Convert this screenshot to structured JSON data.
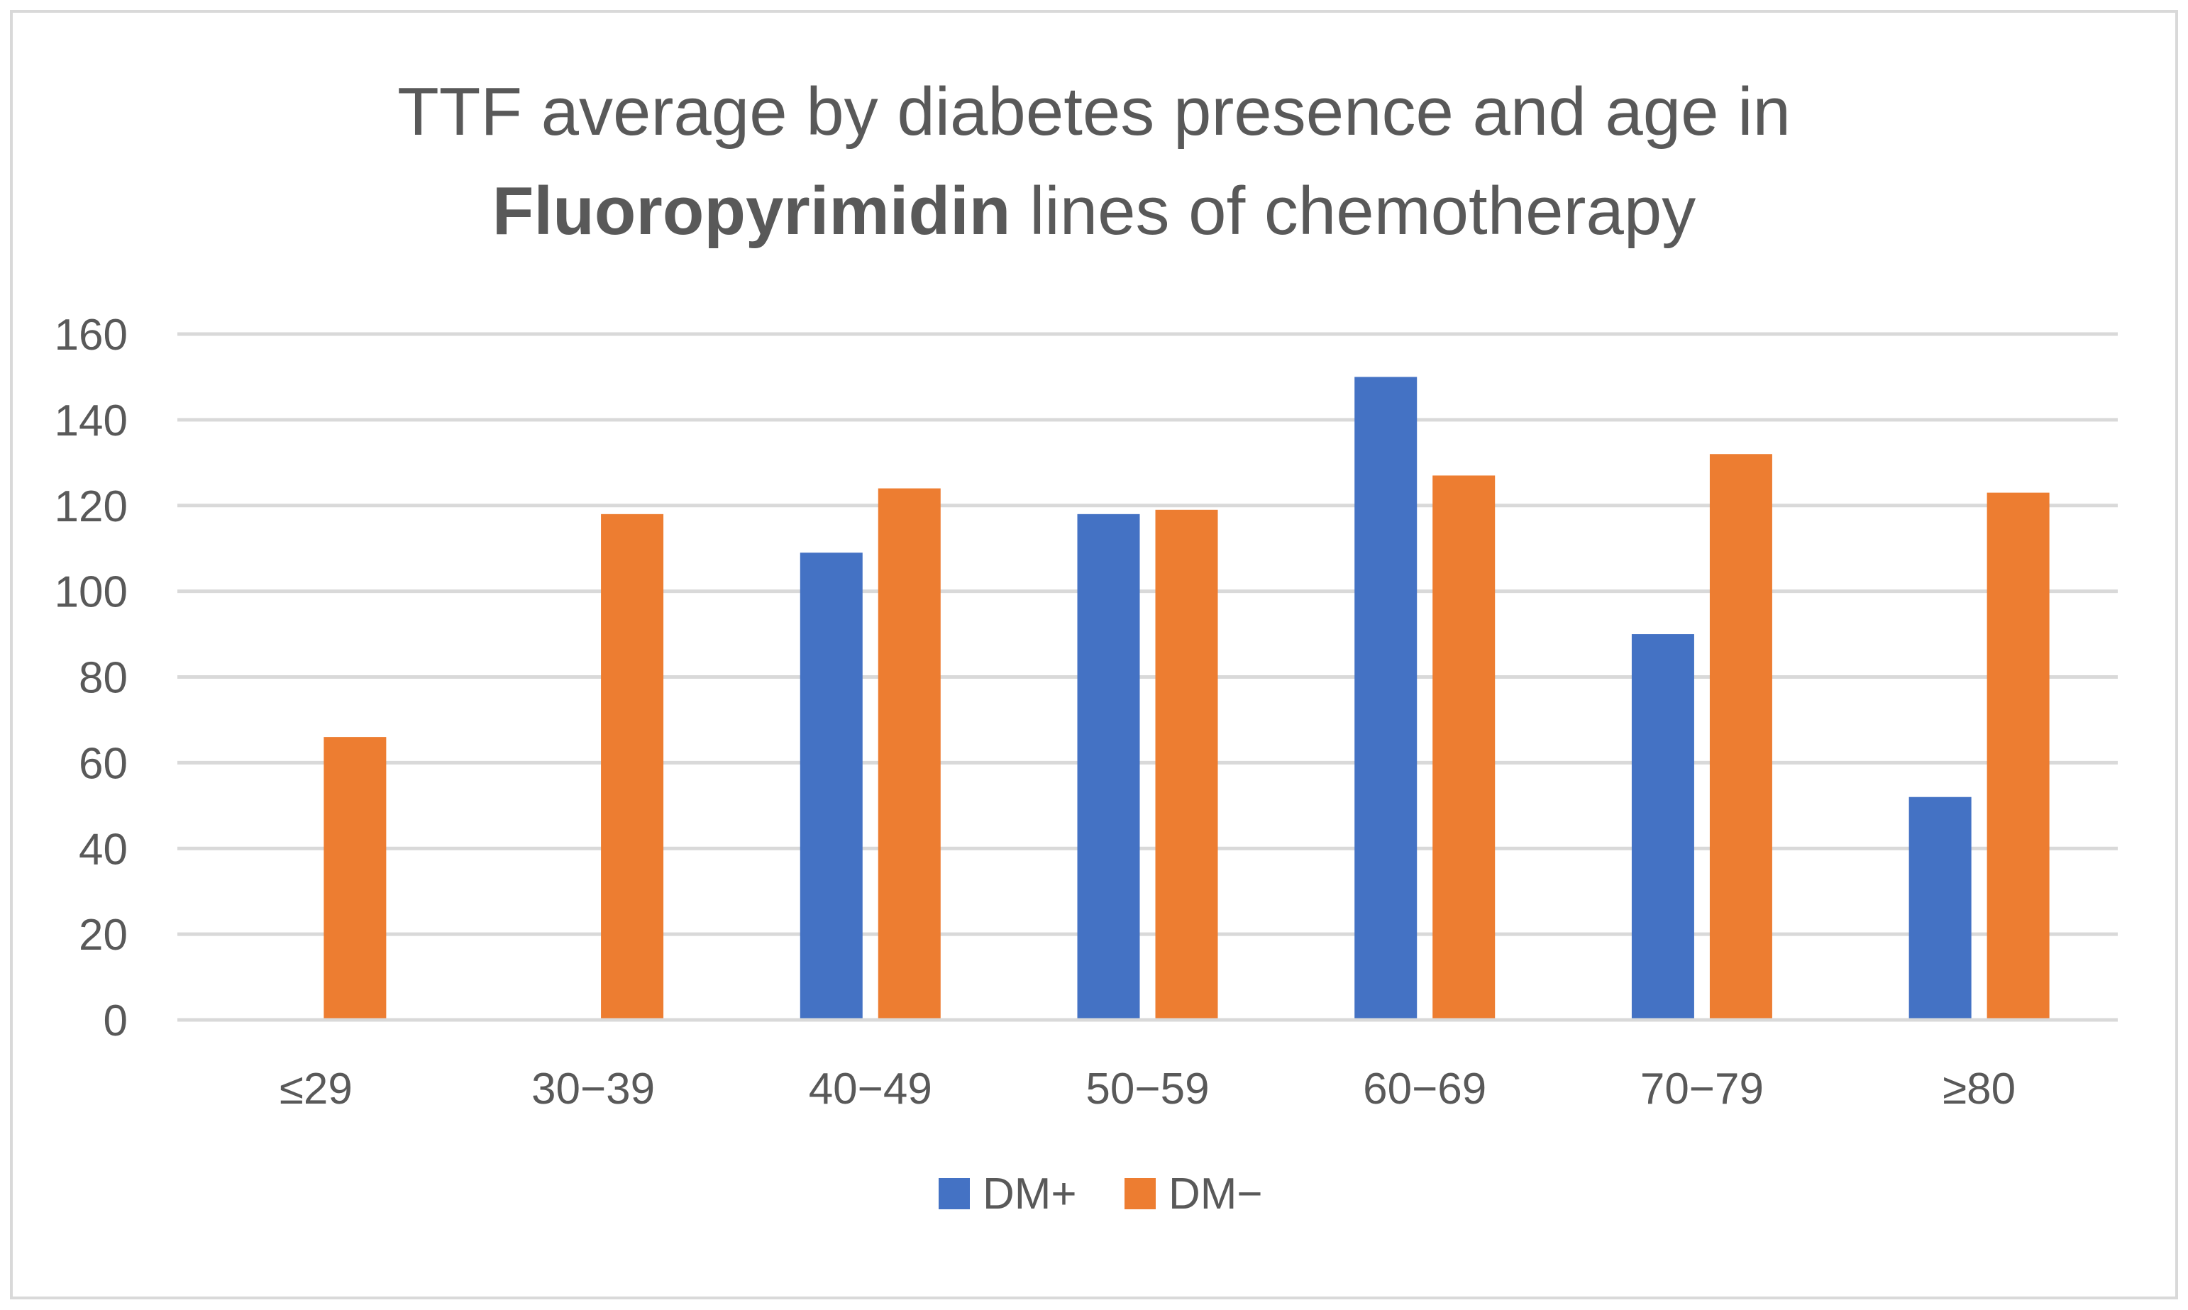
{
  "chart_data": {
    "type": "bar",
    "title_line1": "TTF average by diabetes presence  and age in",
    "title_line2_bold": "Fluoropyrimidin",
    "title_line2_rest": " lines of chemotherapy",
    "categories": [
      "≤29",
      "30−39",
      "40−49",
      "50−59",
      "60−69",
      "70−79",
      "≥80"
    ],
    "series": [
      {
        "name": "DM+",
        "color": "#4472C4",
        "values": [
          null,
          null,
          109,
          118,
          150,
          90,
          52
        ]
      },
      {
        "name": "DM−",
        "color": "#ED7D31",
        "values": [
          66,
          118,
          124,
          119,
          127,
          132,
          123
        ]
      }
    ],
    "y_ticks": [
      "0",
      "20",
      "40",
      "60",
      "80",
      "100",
      "120",
      "140",
      "160"
    ],
    "ylim": [
      0,
      160
    ],
    "xlabel": "",
    "ylabel": "",
    "grid": true,
    "legend_position": "bottom-center"
  }
}
